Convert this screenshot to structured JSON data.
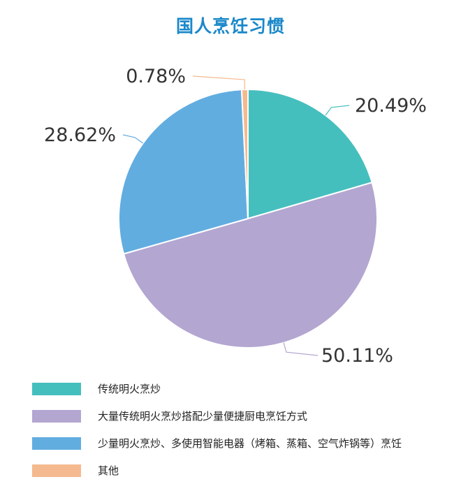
{
  "chart_data": {
    "type": "pie",
    "title": "国人烹饪习惯",
    "slices": [
      {
        "label": "传统明火烹炒",
        "value": 20.49,
        "display": "20.49%",
        "color": "#45bfbe"
      },
      {
        "label": "大量传统明火烹炒搭配少量便捷厨电烹饪方式",
        "value": 50.11,
        "display": "50.11%",
        "color": "#b3a6d1"
      },
      {
        "label": "少量明火烹炒、多使用智能电器（烤箱、蒸箱、空气炸锅等）烹饪",
        "value": 28.62,
        "display": "28.62%",
        "color": "#62ade0"
      },
      {
        "label": "其他",
        "value": 0.78,
        "display": "0.78%",
        "color": "#f5b98f"
      }
    ],
    "start_angle": "12 o'clock",
    "direction": "clockwise",
    "legend_position": "bottom-left"
  }
}
